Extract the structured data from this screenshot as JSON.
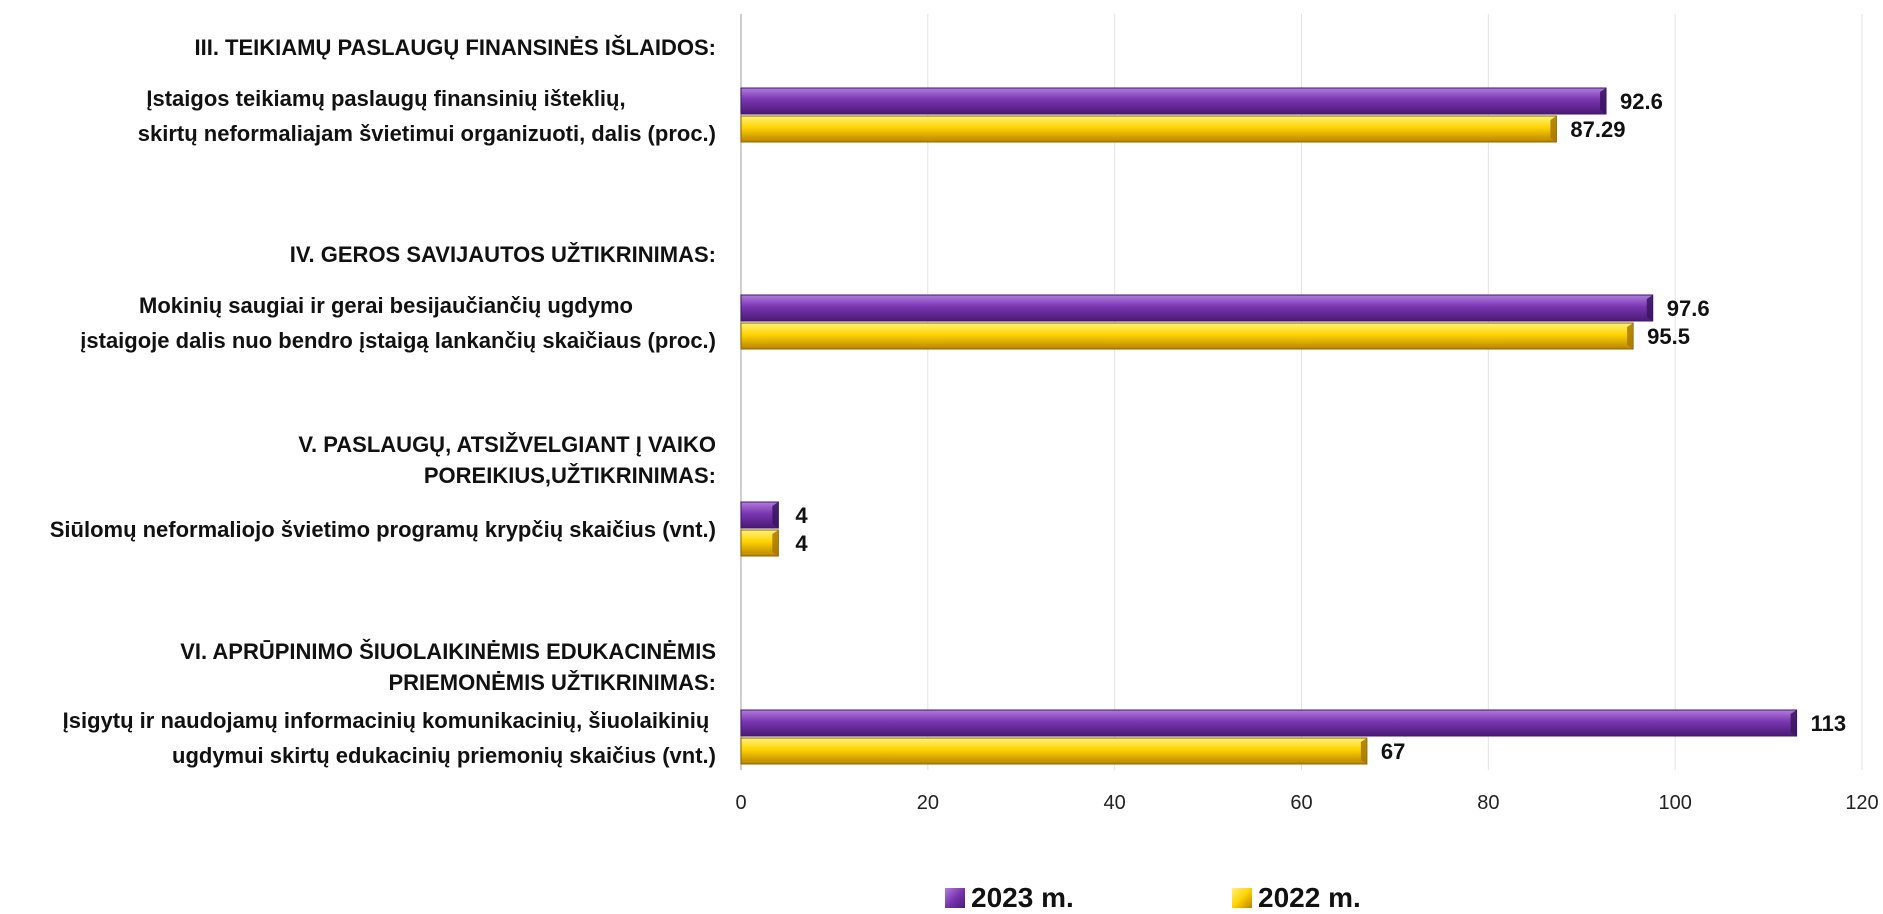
{
  "chart_data": {
    "type": "bar",
    "orientation": "horizontal",
    "xlim": [
      0,
      120
    ],
    "xticks": [
      0,
      20,
      40,
      60,
      80,
      100,
      120
    ],
    "grid": true,
    "legend_position": "bottom",
    "groups": [
      {
        "header_lines": [
          "III. TEIKIAMŲ PASLAUGŲ FINANSINĖS IŠLAIDOS:"
        ],
        "category_lines": [
          "Įstaigos teikiamų paslaugų finansinių išteklių,",
          "skirtų neformaliajam švietimui organizuoti, dalis (proc.)"
        ]
      },
      {
        "header_lines": [
          "IV. GEROS SAVIJAUTOS UŽTIKRINIMAS:"
        ],
        "category_lines": [
          "Mokinių saugiai ir gerai besijaučiančių ugdymo",
          "įstaigoje dalis nuo bendro įstaigą lankančių skaičiaus (proc.)"
        ]
      },
      {
        "header_lines": [
          "V. PASLAUGŲ, ATSIŽVELGIANT Į VAIKO",
          "POREIKIUS,UŽTIKRINIMAS:"
        ],
        "category_lines": [
          "Siūlomų neformaliojo švietimo programų krypčių skaičius (vnt.)"
        ]
      },
      {
        "header_lines": [
          "VI. APRŪPINIMO ŠIUOLAIKINĖMIS EDUKACINĖMIS",
          "PRIEMONĖMIS UŽTIKRINIMAS:"
        ],
        "category_lines": [
          "Įsigytų ir naudojamų informacinių komunikacinių, šiuolaikinių",
          "ugdymui skirtų edukacinių priemonių skaičius (vnt.)"
        ]
      }
    ],
    "series": [
      {
        "name": "2023 m.",
        "color": "#7030a0",
        "values": [
          92.6,
          97.6,
          4,
          113
        ],
        "labels": [
          "92.6",
          "97.6",
          "4",
          "113"
        ]
      },
      {
        "name": "2022 m.",
        "color": "#ffc000",
        "values": [
          87.29,
          95.5,
          4,
          67
        ],
        "labels": [
          "87.29",
          "95.5",
          "4",
          "67"
        ]
      }
    ]
  }
}
